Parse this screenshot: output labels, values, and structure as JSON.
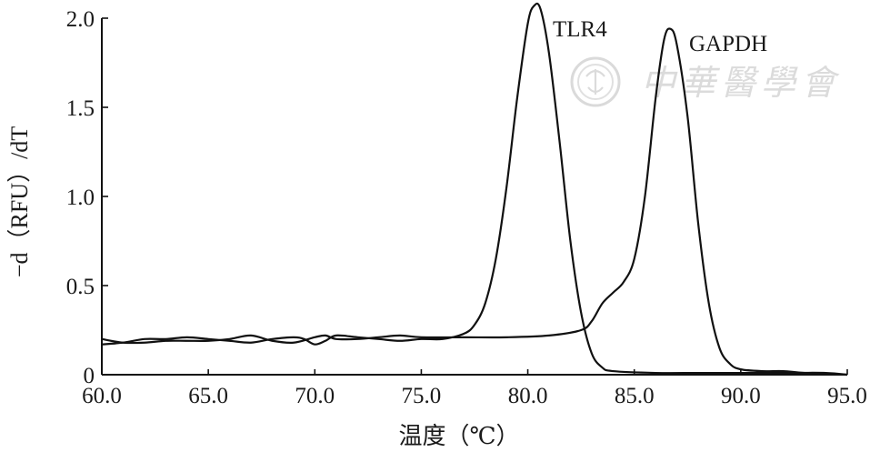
{
  "chart_data": {
    "type": "line",
    "xlabel": "温度（℃）",
    "ylabel": "−d（RFU）/dT",
    "xlim": [
      60,
      95
    ],
    "ylim": [
      0,
      2.0
    ],
    "x_ticks": [
      "60.0",
      "65.0",
      "70.0",
      "75.0",
      "80.0",
      "85.0",
      "90.0",
      "95.0"
    ],
    "y_ticks": [
      "0",
      "0.5",
      "1.0",
      "1.5",
      "2.0"
    ],
    "grid": false,
    "series": [
      {
        "name": "TLR4",
        "points": [
          [
            60.0,
            0.17
          ],
          [
            61.0,
            0.18
          ],
          [
            62.0,
            0.2
          ],
          [
            63.0,
            0.2
          ],
          [
            64.0,
            0.21
          ],
          [
            65.0,
            0.2
          ],
          [
            66.0,
            0.19
          ],
          [
            67.0,
            0.18
          ],
          [
            68.0,
            0.2
          ],
          [
            69.0,
            0.21
          ],
          [
            69.5,
            0.2
          ],
          [
            70.0,
            0.17
          ],
          [
            70.5,
            0.19
          ],
          [
            71.0,
            0.22
          ],
          [
            72.0,
            0.21
          ],
          [
            73.0,
            0.2
          ],
          [
            74.0,
            0.19
          ],
          [
            75.0,
            0.2
          ],
          [
            76.0,
            0.2
          ],
          [
            77.0,
            0.23
          ],
          [
            77.5,
            0.28
          ],
          [
            78.0,
            0.4
          ],
          [
            78.5,
            0.65
          ],
          [
            79.0,
            1.05
          ],
          [
            79.5,
            1.55
          ],
          [
            80.0,
            1.97
          ],
          [
            80.3,
            2.07
          ],
          [
            80.6,
            2.05
          ],
          [
            81.0,
            1.8
          ],
          [
            81.5,
            1.3
          ],
          [
            82.0,
            0.75
          ],
          [
            82.5,
            0.35
          ],
          [
            83.0,
            0.12
          ],
          [
            83.5,
            0.04
          ],
          [
            84.0,
            0.02
          ],
          [
            86.0,
            0.01
          ],
          [
            88.0,
            0.01
          ],
          [
            90.0,
            0.01
          ],
          [
            92.0,
            0.01
          ],
          [
            94.0,
            0.01
          ],
          [
            95.0,
            0.0
          ]
        ]
      },
      {
        "name": "GAPDH",
        "points": [
          [
            60.0,
            0.2
          ],
          [
            61.0,
            0.18
          ],
          [
            62.0,
            0.18
          ],
          [
            63.0,
            0.19
          ],
          [
            64.0,
            0.19
          ],
          [
            65.0,
            0.19
          ],
          [
            66.0,
            0.2
          ],
          [
            67.0,
            0.22
          ],
          [
            68.0,
            0.19
          ],
          [
            69.0,
            0.18
          ],
          [
            70.0,
            0.21
          ],
          [
            70.5,
            0.22
          ],
          [
            71.0,
            0.2
          ],
          [
            72.0,
            0.2
          ],
          [
            73.0,
            0.21
          ],
          [
            74.0,
            0.22
          ],
          [
            75.0,
            0.21
          ],
          [
            77.0,
            0.21
          ],
          [
            79.0,
            0.21
          ],
          [
            81.0,
            0.22
          ],
          [
            82.5,
            0.25
          ],
          [
            83.0,
            0.3
          ],
          [
            83.5,
            0.4
          ],
          [
            84.0,
            0.46
          ],
          [
            84.5,
            0.52
          ],
          [
            85.0,
            0.65
          ],
          [
            85.5,
            1.0
          ],
          [
            86.0,
            1.55
          ],
          [
            86.4,
            1.88
          ],
          [
            86.7,
            1.94
          ],
          [
            87.0,
            1.85
          ],
          [
            87.5,
            1.45
          ],
          [
            88.0,
            0.85
          ],
          [
            88.5,
            0.4
          ],
          [
            89.0,
            0.15
          ],
          [
            89.5,
            0.06
          ],
          [
            90.0,
            0.03
          ],
          [
            91.0,
            0.02
          ],
          [
            92.0,
            0.02
          ],
          [
            93.0,
            0.01
          ],
          [
            95.0,
            0.0
          ]
        ]
      }
    ]
  },
  "watermark": {
    "text": "中華醫學會",
    "seal_color": "#d8d8d8"
  }
}
